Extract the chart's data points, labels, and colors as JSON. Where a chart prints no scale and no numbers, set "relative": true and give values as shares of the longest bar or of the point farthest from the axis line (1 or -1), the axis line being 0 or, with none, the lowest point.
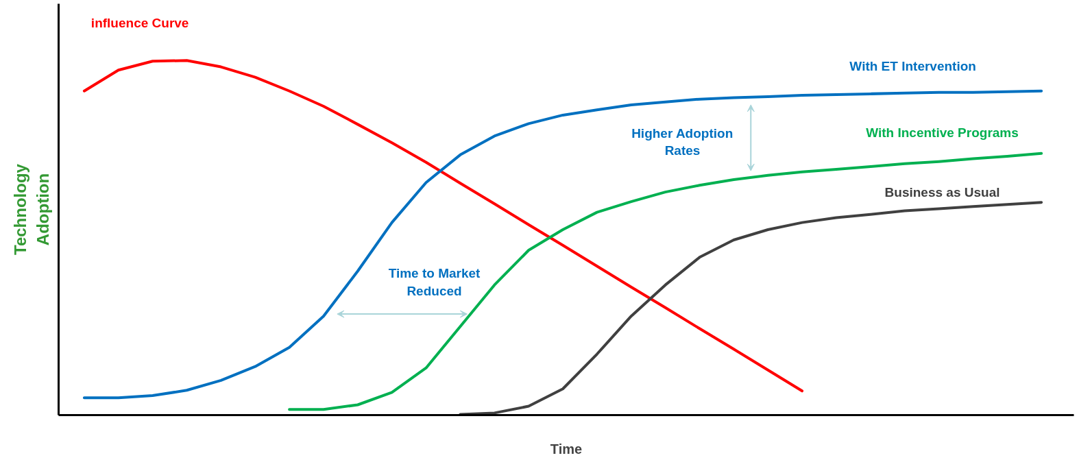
{
  "chart_data": {
    "type": "line",
    "relative": true,
    "xlabel": "Time",
    "ylabel": "Technology Adoption",
    "marker": "none",
    "line_style": "solid",
    "categories": [
      null,
      null,
      null,
      null,
      null,
      null,
      null,
      null,
      null,
      null,
      null,
      null,
      null,
      null,
      null,
      null,
      null,
      null,
      null,
      null,
      null,
      null,
      null,
      null,
      null,
      null,
      null,
      null,
      null
    ],
    "series": [
      {
        "name": "influence Curve",
        "color": "#ff0000",
        "values": [
          0.914,
          0.973,
          0.998,
          1.0,
          0.982,
          0.953,
          0.914,
          0.871,
          0.82,
          0.768,
          0.713,
          0.654,
          0.596,
          0.537,
          0.479,
          0.42,
          0.361,
          0.303,
          0.244,
          0.186,
          0.127,
          0.068,
          null,
          null,
          null,
          null,
          null,
          null,
          null
        ]
      },
      {
        "name": "With ET Intervention",
        "color": "#0070c0",
        "values": [
          0.049,
          0.049,
          0.055,
          0.07,
          0.098,
          0.137,
          0.191,
          0.279,
          0.406,
          0.543,
          0.656,
          0.734,
          0.787,
          0.822,
          0.846,
          0.861,
          0.875,
          0.883,
          0.891,
          0.895,
          0.898,
          0.902,
          0.904,
          0.906,
          0.908,
          0.91,
          0.91,
          0.912,
          0.914
        ]
      },
      {
        "name": "With Incentive Programs",
        "color": "#00b050",
        "values": [
          null,
          null,
          null,
          null,
          null,
          null,
          0.016,
          0.016,
          0.029,
          0.064,
          0.133,
          0.25,
          0.367,
          0.465,
          0.523,
          0.572,
          0.602,
          0.629,
          0.648,
          0.664,
          0.676,
          0.686,
          0.693,
          0.701,
          0.709,
          0.715,
          0.723,
          0.73,
          0.738
        ]
      },
      {
        "name": "Business as Usual",
        "color": "#404040",
        "values": [
          null,
          null,
          null,
          null,
          null,
          null,
          null,
          null,
          null,
          null,
          null,
          0.002,
          0.006,
          0.025,
          0.074,
          0.172,
          0.279,
          0.367,
          0.445,
          0.494,
          0.523,
          0.543,
          0.557,
          0.566,
          0.576,
          0.582,
          0.588,
          0.594,
          0.6
        ]
      }
    ],
    "annotations": [
      "Time to Market Reduced",
      "Higher Adoption Rates"
    ]
  }
}
